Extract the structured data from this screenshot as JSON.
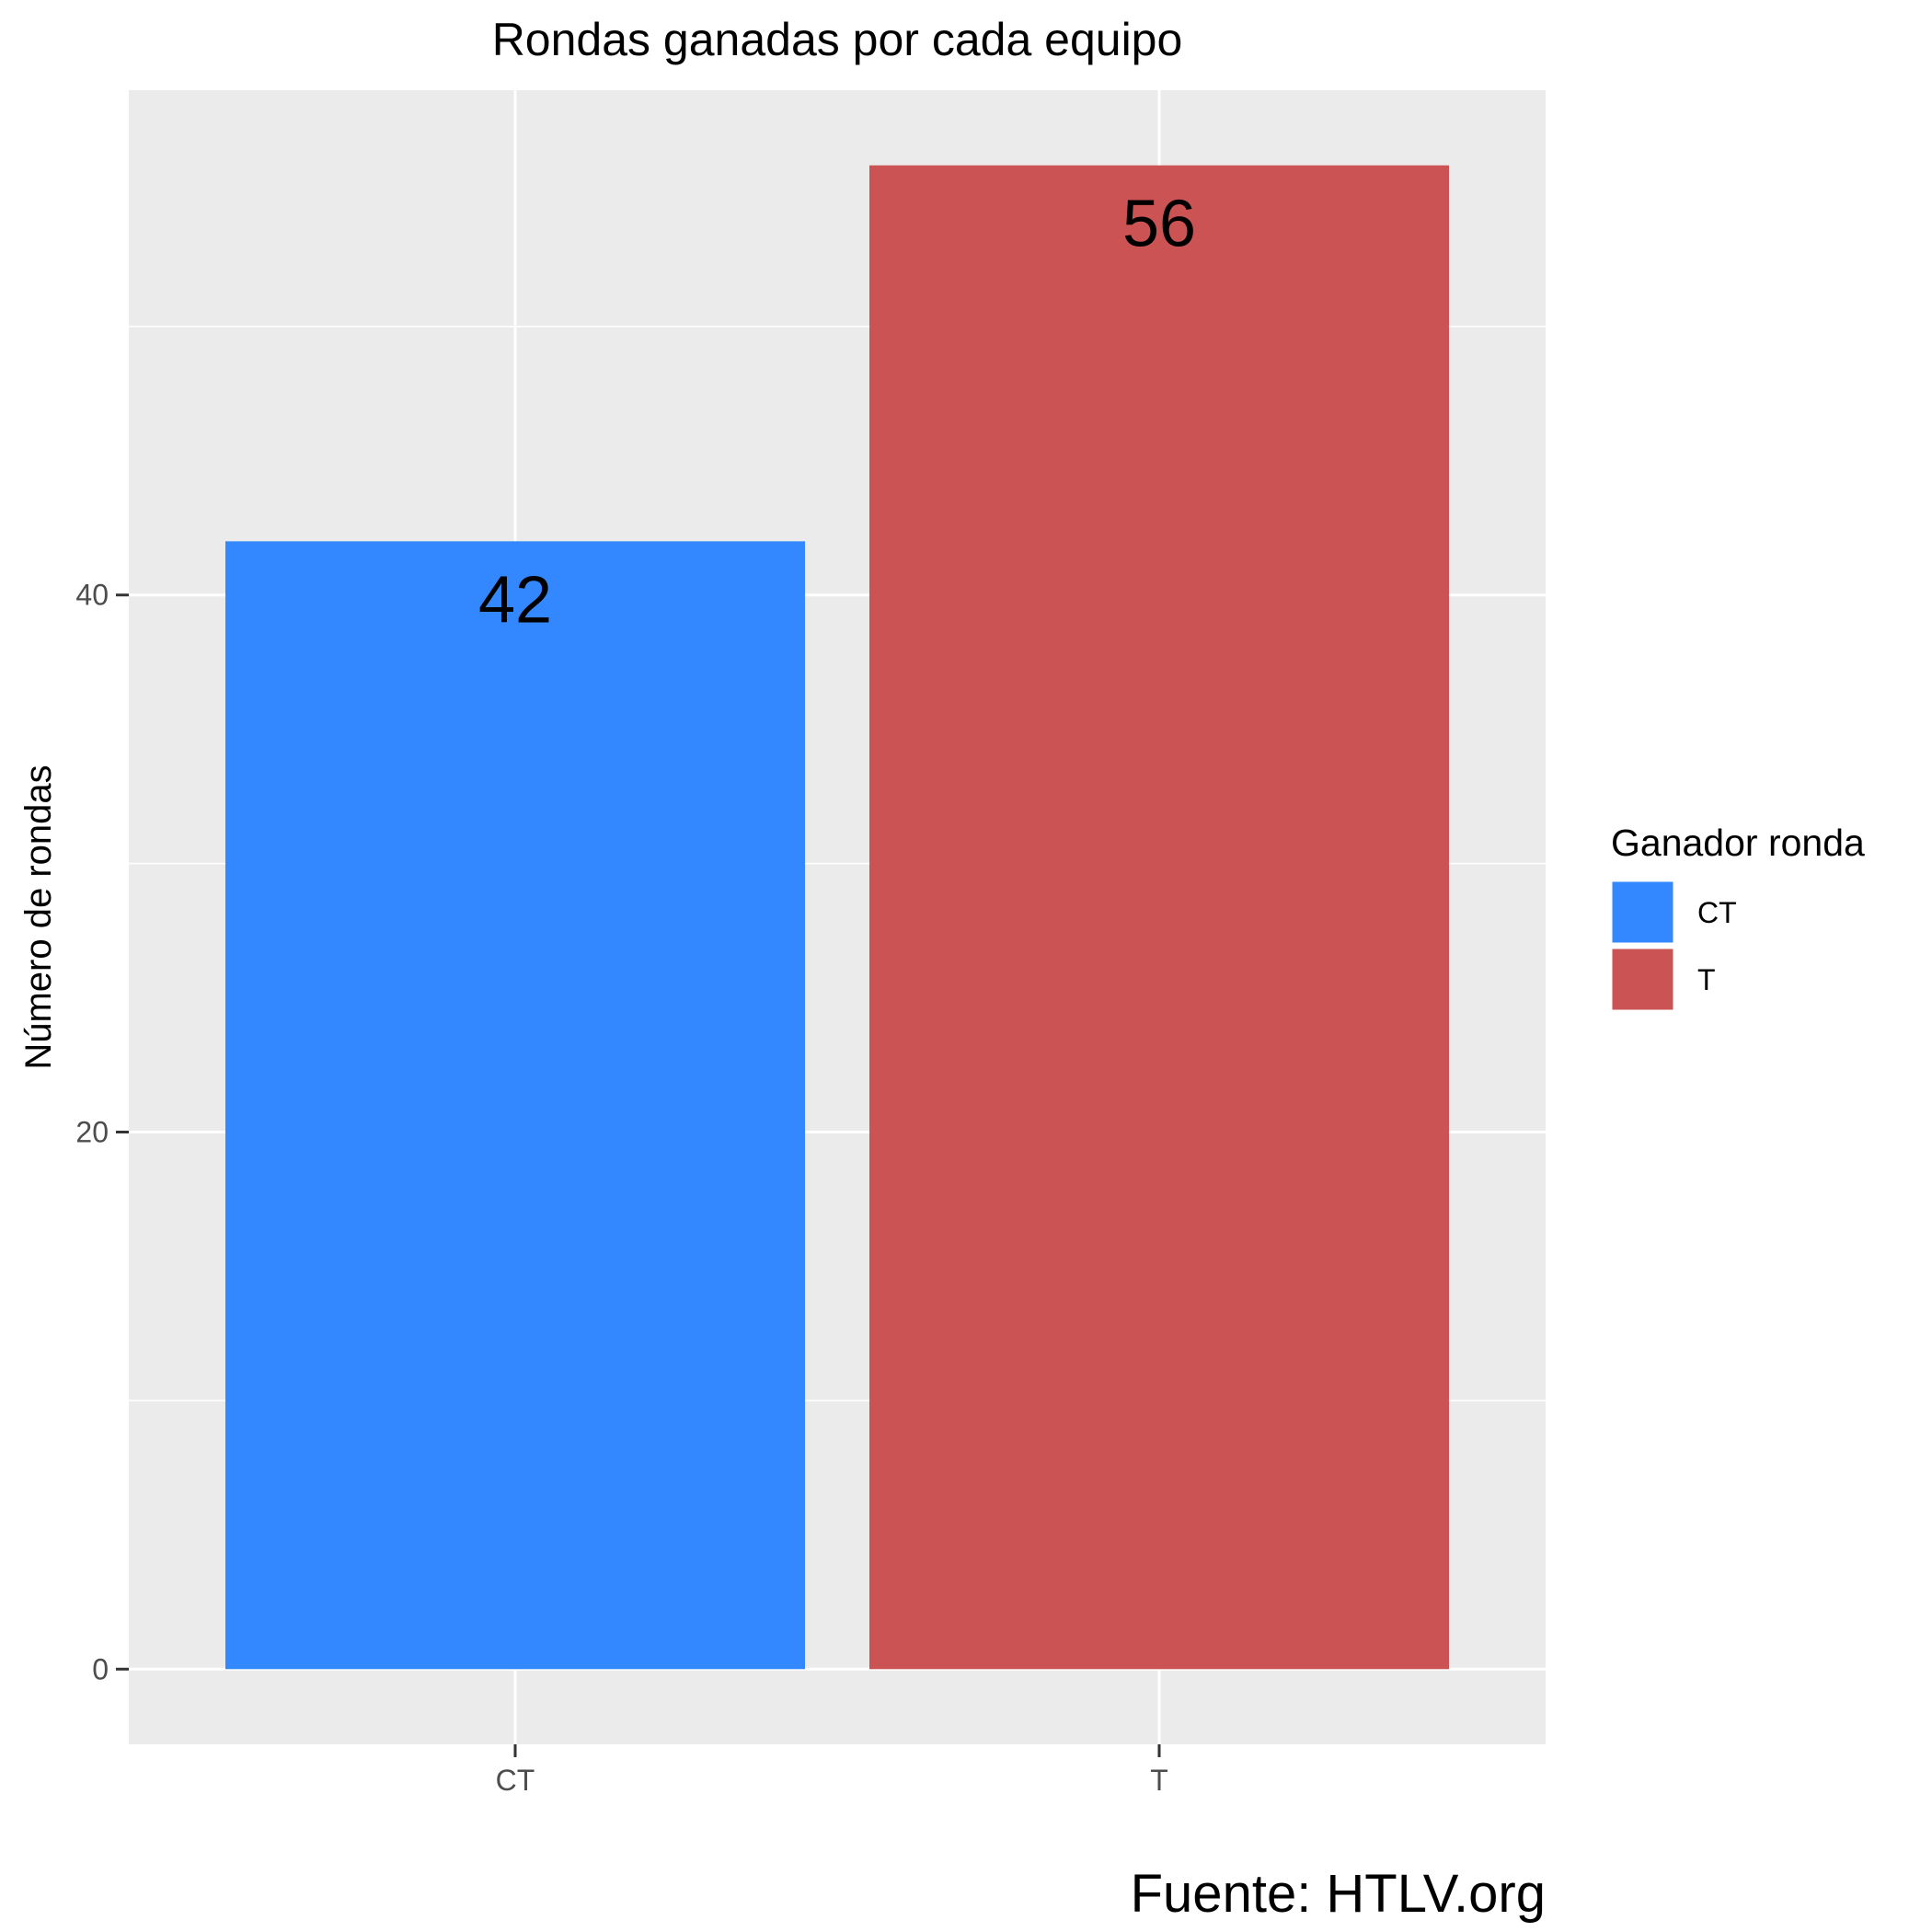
{
  "chart_data": {
    "type": "bar",
    "title": "Rondas ganadas por cada equipo",
    "xlabel": "",
    "ylabel": "Número de rondas",
    "categories": [
      "CT",
      "T"
    ],
    "values": [
      42,
      56
    ],
    "data_labels": [
      "42",
      "56"
    ],
    "colors": [
      "#3388ff",
      "#cc5353"
    ],
    "ylim": [
      -2.8,
      58.8
    ],
    "yticks": [
      0,
      20,
      40
    ],
    "ytick_labels": [
      "0",
      "20",
      "40"
    ],
    "minor_yticks": [
      10,
      30,
      50
    ],
    "grid": true,
    "legend": {
      "title": "Ganador ronda",
      "position": "right",
      "entries": [
        {
          "label": "CT",
          "color": "#3388ff"
        },
        {
          "label": "T",
          "color": "#cc5353"
        }
      ]
    },
    "caption": "Fuente: HTLV.org"
  }
}
